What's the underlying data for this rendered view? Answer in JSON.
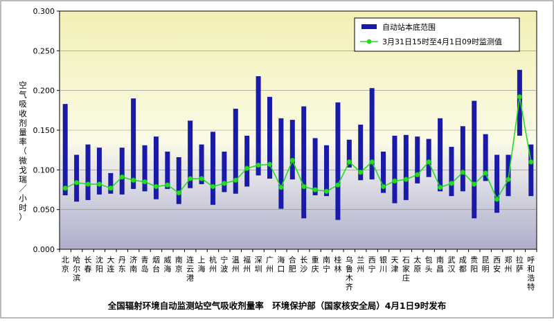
{
  "chart_data": {
    "type": "bar",
    "title": "全国辐射环境自动监测站空气吸收剂量率　环境保护部（国家核安全局）4月1日9时发布",
    "ylabel": "空气吸收剂量率（微戈瑞／小时）",
    "xlabel": "",
    "ylim": [
      0,
      0.3
    ],
    "yticks": [
      "0.000",
      "0.050",
      "0.100",
      "0.150",
      "0.200",
      "0.250",
      "0.300"
    ],
    "yticks_values": [
      0,
      0.05,
      0.1,
      0.15,
      0.2,
      0.25,
      0.3
    ],
    "grid": true,
    "legend_position": "top-right",
    "background_bands": "vertical gradient: blue-gray below 0.05, light gray 0.05-0.10, pale yellow to cream above 0.10",
    "categories": [
      "北京",
      "哈尔滨",
      "长春",
      "沈阳",
      "大连",
      "丹东",
      "济南",
      "青岛",
      "烟台",
      "威海",
      "南京",
      "连云港",
      "上海",
      "杭州",
      "宁波",
      "温州",
      "福州",
      "深圳",
      "广州",
      "海口",
      "合肥",
      "长沙",
      "重庆",
      "南宁",
      "桂林",
      "乌鲁木齐",
      "兰州",
      "西宁",
      "银川",
      "天津",
      "石家庄",
      "太原",
      "包头",
      "南昌",
      "武汉",
      "成都",
      "贵阳",
      "昆明",
      "西安",
      "郑州",
      "拉萨",
      "呼和浩特"
    ],
    "series": [
      {
        "name": "自动站本底范围",
        "kind": "range-bar",
        "color": "#1a1aa8",
        "low": [
          0.068,
          0.06,
          0.062,
          0.069,
          0.07,
          0.069,
          0.076,
          0.073,
          0.063,
          0.076,
          0.057,
          0.077,
          0.082,
          0.056,
          0.072,
          0.07,
          0.079,
          0.093,
          0.089,
          0.051,
          0.088,
          0.039,
          0.068,
          0.067,
          0.037,
          0.103,
          0.087,
          0.088,
          0.071,
          0.058,
          0.062,
          0.083,
          0.091,
          0.073,
          0.067,
          0.073,
          0.039,
          0.086,
          0.046,
          0.067,
          0.143,
          0.067
        ],
        "high": [
          0.183,
          0.119,
          0.132,
          0.128,
          0.096,
          0.128,
          0.19,
          0.131,
          0.142,
          0.123,
          0.116,
          0.162,
          0.132,
          0.148,
          0.123,
          0.177,
          0.143,
          0.218,
          0.192,
          0.165,
          0.163,
          0.18,
          0.14,
          0.131,
          0.185,
          0.138,
          0.157,
          0.203,
          0.123,
          0.143,
          0.144,
          0.142,
          0.139,
          0.165,
          0.129,
          0.155,
          0.187,
          0.145,
          0.119,
          0.119,
          0.226,
          0.132
        ]
      },
      {
        "name": "3月31日15时至4月1日09时监测值",
        "kind": "line",
        "color": "#22dd22",
        "values": [
          0.077,
          0.084,
          0.082,
          0.082,
          0.077,
          0.091,
          0.087,
          0.085,
          0.079,
          0.081,
          0.071,
          0.089,
          0.089,
          0.079,
          0.083,
          0.087,
          0.102,
          0.106,
          0.107,
          0.078,
          0.112,
          0.079,
          0.075,
          0.073,
          0.081,
          0.11,
          0.097,
          0.11,
          0.079,
          0.086,
          0.088,
          0.094,
          0.11,
          0.078,
          0.083,
          0.097,
          0.082,
          0.096,
          0.063,
          0.088,
          0.192,
          0.11
        ]
      }
    ]
  }
}
